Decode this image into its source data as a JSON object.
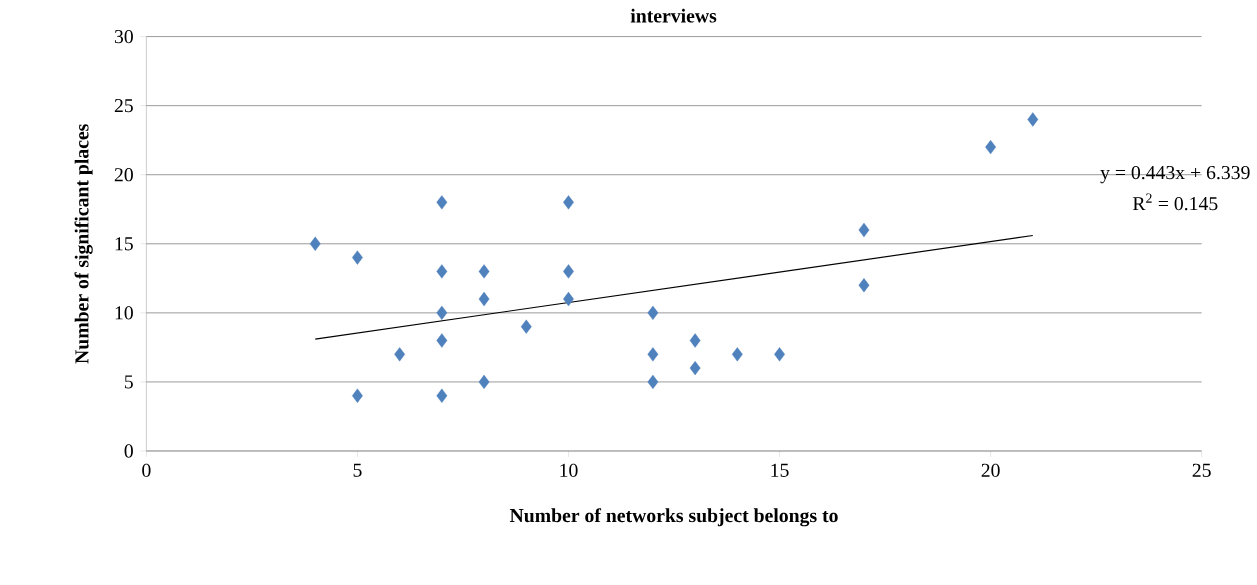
{
  "chart_data": {
    "type": "scatter",
    "title": "interviews",
    "xlabel": "Number of networks subject belongs to",
    "ylabel": "Number of significant places",
    "series": [
      {
        "color": "#4f81bd",
        "marker": "diamond",
        "x": [
          4,
          5,
          5,
          6,
          7,
          7,
          7,
          7,
          7,
          8,
          8,
          8,
          9,
          10,
          10,
          10,
          12,
          12,
          12,
          13,
          13,
          14,
          15,
          17,
          17,
          20,
          21
        ],
        "values": [
          15,
          14,
          4,
          7,
          18,
          13,
          10,
          8,
          4,
          13,
          11,
          5,
          9,
          18,
          13,
          11,
          10,
          7,
          5,
          8,
          6,
          7,
          7,
          16,
          12,
          22,
          24
        ]
      },
      {
        "type": "line",
        "color": "#000000",
        "marker": "none",
        "line_style": "solid",
        "x": [
          4,
          21
        ],
        "values": [
          8.1,
          15.6
        ]
      }
    ],
    "annotations": [
      "y = 0.443x + 6.339",
      "R$^{2}$ = 0.145"
    ],
    "xlim": [
      0,
      25
    ],
    "xticks": [
      0,
      5,
      10,
      15,
      20,
      25
    ],
    "ylim": [
      0,
      30
    ],
    "yticks": [
      0,
      5,
      10,
      15,
      20,
      25,
      30
    ],
    "grid": "y"
  }
}
